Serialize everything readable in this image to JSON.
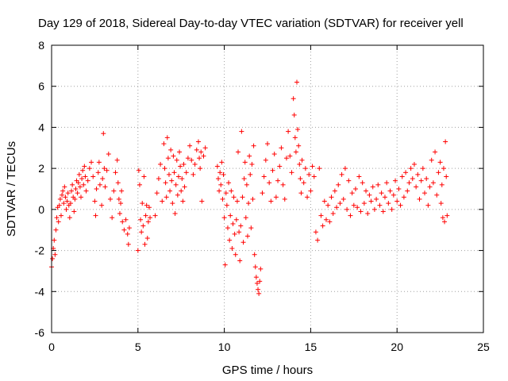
{
  "chart_data": {
    "type": "scatter",
    "title": "Day 129 of 2018, Sidereal Day-to-day VTEC variation (SDTVAR) for receiver yell",
    "xlabel": "GPS time / hours",
    "ylabel": "SDTVAR / TECUs",
    "xlim": [
      0,
      25
    ],
    "ylim": [
      -6,
      8
    ],
    "xticks": [
      "0",
      "5",
      "10",
      "15",
      "20",
      "25"
    ],
    "yticks": [
      "-6",
      "-4",
      "-2",
      "0",
      "2",
      "4",
      "6",
      "8"
    ],
    "grid": true,
    "marker": "+",
    "color": "#ff0000",
    "series": [
      {
        "name": "SDTVAR",
        "points": [
          [
            0.0,
            -2.8
          ],
          [
            0.05,
            -2.4
          ],
          [
            0.1,
            -1.9
          ],
          [
            0.15,
            -1.5
          ],
          [
            0.2,
            -2.2
          ],
          [
            0.25,
            -1.0
          ],
          [
            0.3,
            -0.4
          ],
          [
            0.35,
            0.1
          ],
          [
            0.4,
            -0.6
          ],
          [
            0.45,
            0.2
          ],
          [
            0.5,
            0.5
          ],
          [
            0.55,
            -0.3
          ],
          [
            0.6,
            0.7
          ],
          [
            0.65,
            0.9
          ],
          [
            0.7,
            0.3
          ],
          [
            0.75,
            1.1
          ],
          [
            0.8,
            0.6
          ],
          [
            0.85,
            0.0
          ],
          [
            0.9,
            0.4
          ],
          [
            0.95,
            0.8
          ],
          [
            1.0,
            0.2
          ],
          [
            1.05,
            -0.4
          ],
          [
            1.1,
            0.3
          ],
          [
            1.15,
            0.9
          ],
          [
            1.2,
            1.2
          ],
          [
            1.25,
            0.6
          ],
          [
            1.3,
            -0.1
          ],
          [
            1.35,
            0.5
          ],
          [
            1.4,
            1.0
          ],
          [
            1.45,
            1.4
          ],
          [
            1.5,
            0.8
          ],
          [
            1.55,
            1.3
          ],
          [
            1.6,
            1.7
          ],
          [
            1.65,
            1.1
          ],
          [
            1.7,
            0.6
          ],
          [
            1.75,
            1.5
          ],
          [
            1.8,
            1.9
          ],
          [
            1.85,
            1.2
          ],
          [
            1.9,
            2.1
          ],
          [
            1.95,
            1.6
          ],
          [
            2.0,
            0.9
          ],
          [
            2.1,
            1.4
          ],
          [
            2.2,
            2.0
          ],
          [
            2.3,
            2.3
          ],
          [
            2.4,
            1.6
          ],
          [
            2.5,
            0.4
          ],
          [
            2.55,
            -0.3
          ],
          [
            2.6,
            1.0
          ],
          [
            2.7,
            1.8
          ],
          [
            2.75,
            2.3
          ],
          [
            2.8,
            1.2
          ],
          [
            2.9,
            0.2
          ],
          [
            2.95,
            1.5
          ],
          [
            3.0,
            3.7
          ],
          [
            3.05,
            2.0
          ],
          [
            3.1,
            1.1
          ],
          [
            3.2,
            1.9
          ],
          [
            3.3,
            2.7
          ],
          [
            3.4,
            0.5
          ],
          [
            3.5,
            -0.4
          ],
          [
            3.6,
            0.9
          ],
          [
            3.7,
            1.8
          ],
          [
            3.8,
            2.4
          ],
          [
            3.85,
            1.3
          ],
          [
            3.9,
            0.5
          ],
          [
            3.95,
            -0.2
          ],
          [
            4.0,
            0.3
          ],
          [
            4.05,
            0.9
          ],
          [
            4.1,
            -0.6
          ],
          [
            4.2,
            -1.0
          ],
          [
            4.3,
            -0.5
          ],
          [
            4.4,
            -1.2
          ],
          [
            4.45,
            -1.7
          ],
          [
            4.5,
            -0.9
          ],
          [
            5.0,
            -2.0
          ],
          [
            5.05,
            1.9
          ],
          [
            5.1,
            1.2
          ],
          [
            5.15,
            -0.5
          ],
          [
            5.2,
            -1.1
          ],
          [
            5.25,
            0.3
          ],
          [
            5.3,
            -0.8
          ],
          [
            5.35,
            1.6
          ],
          [
            5.4,
            -1.7
          ],
          [
            5.45,
            -0.3
          ],
          [
            5.5,
            0.2
          ],
          [
            5.55,
            -1.4
          ],
          [
            5.6,
            -0.6
          ],
          [
            5.65,
            0.1
          ],
          [
            5.7,
            -0.4
          ],
          [
            6.0,
            -0.3
          ],
          [
            6.1,
            0.8
          ],
          [
            6.2,
            1.5
          ],
          [
            6.3,
            2.2
          ],
          [
            6.4,
            0.4
          ],
          [
            6.5,
            3.2
          ],
          [
            6.55,
            2.0
          ],
          [
            6.6,
            1.3
          ],
          [
            6.65,
            0.6
          ],
          [
            6.7,
            3.5
          ],
          [
            6.75,
            2.5
          ],
          [
            6.8,
            1.7
          ],
          [
            6.85,
            0.9
          ],
          [
            6.9,
            2.9
          ],
          [
            6.95,
            1.4
          ],
          [
            7.0,
            0.3
          ],
          [
            7.05,
            2.6
          ],
          [
            7.1,
            1.8
          ],
          [
            7.15,
            -0.2
          ],
          [
            7.2,
            1.2
          ],
          [
            7.25,
            2.4
          ],
          [
            7.3,
            0.7
          ],
          [
            7.35,
            1.6
          ],
          [
            7.4,
            2.8
          ],
          [
            7.45,
            2.1
          ],
          [
            7.5,
            0.9
          ],
          [
            7.55,
            1.5
          ],
          [
            7.6,
            0.4
          ],
          [
            7.65,
            2.2
          ],
          [
            7.7,
            1.1
          ],
          [
            7.8,
            1.8
          ],
          [
            7.9,
            2.5
          ],
          [
            8.0,
            3.1
          ],
          [
            8.1,
            2.4
          ],
          [
            8.2,
            1.7
          ],
          [
            8.3,
            2.2
          ],
          [
            8.4,
            2.9
          ],
          [
            8.5,
            3.3
          ],
          [
            8.55,
            2.5
          ],
          [
            8.6,
            2.0
          ],
          [
            8.65,
            2.8
          ],
          [
            8.7,
            0.4
          ],
          [
            8.8,
            2.6
          ],
          [
            8.9,
            3.0
          ],
          [
            9.6,
            2.1
          ],
          [
            9.65,
            1.5
          ],
          [
            9.7,
            0.9
          ],
          [
            9.75,
            1.8
          ],
          [
            9.8,
            1.2
          ],
          [
            9.85,
            2.3
          ],
          [
            9.9,
            0.5
          ],
          [
            9.95,
            1.7
          ],
          [
            10.0,
            -0.4
          ],
          [
            10.05,
            -2.7
          ],
          [
            10.1,
            0.8
          ],
          [
            10.15,
            0.2
          ],
          [
            10.2,
            -0.9
          ],
          [
            10.25,
            1.3
          ],
          [
            10.3,
            -1.5
          ],
          [
            10.35,
            -0.3
          ],
          [
            10.4,
            0.9
          ],
          [
            10.45,
            -1.9
          ],
          [
            10.5,
            -0.7
          ],
          [
            10.55,
            0.6
          ],
          [
            10.6,
            -1.2
          ],
          [
            10.65,
            -2.2
          ],
          [
            10.7,
            -0.5
          ],
          [
            10.75,
            0.4
          ],
          [
            10.8,
            2.8
          ],
          [
            10.85,
            -1.1
          ],
          [
            10.9,
            -2.5
          ],
          [
            10.95,
            -0.8
          ],
          [
            11.0,
            3.8
          ],
          [
            11.05,
            0.6
          ],
          [
            11.1,
            -1.6
          ],
          [
            11.15,
            1.5
          ],
          [
            11.2,
            2.3
          ],
          [
            11.25,
            -0.4
          ],
          [
            11.3,
            1.2
          ],
          [
            11.35,
            -1.3
          ],
          [
            11.4,
            0.3
          ],
          [
            11.45,
            2.6
          ],
          [
            11.5,
            1.7
          ],
          [
            11.55,
            -0.9
          ],
          [
            11.6,
            2.2
          ],
          [
            11.65,
            0.5
          ],
          [
            11.7,
            3.1
          ],
          [
            11.75,
            -2.2
          ],
          [
            11.8,
            -2.8
          ],
          [
            11.85,
            -3.3
          ],
          [
            11.9,
            -3.6
          ],
          [
            11.95,
            -3.9
          ],
          [
            12.0,
            -4.1
          ],
          [
            12.05,
            -3.5
          ],
          [
            12.1,
            -2.9
          ],
          [
            12.2,
            0.8
          ],
          [
            12.3,
            1.6
          ],
          [
            12.4,
            2.4
          ],
          [
            12.5,
            3.2
          ],
          [
            12.6,
            1.3
          ],
          [
            12.7,
            0.4
          ],
          [
            12.8,
            1.9
          ],
          [
            12.9,
            2.7
          ],
          [
            13.0,
            0.6
          ],
          [
            13.1,
            1.4
          ],
          [
            13.2,
            2.1
          ],
          [
            13.3,
            3.0
          ],
          [
            13.4,
            1.2
          ],
          [
            13.5,
            0.5
          ],
          [
            13.6,
            2.5
          ],
          [
            13.7,
            3.8
          ],
          [
            13.8,
            2.6
          ],
          [
            13.9,
            1.8
          ],
          [
            14.0,
            5.4
          ],
          [
            14.05,
            4.6
          ],
          [
            14.1,
            3.5
          ],
          [
            14.15,
            2.8
          ],
          [
            14.2,
            6.2
          ],
          [
            14.25,
            3.9
          ],
          [
            14.3,
            3.1
          ],
          [
            14.35,
            2.2
          ],
          [
            14.4,
            1.5
          ],
          [
            14.45,
            0.8
          ],
          [
            14.5,
            2.4
          ],
          [
            14.6,
            1.3
          ],
          [
            14.7,
            2.0
          ],
          [
            14.8,
            0.6
          ],
          [
            14.9,
            1.7
          ],
          [
            15.0,
            0.9
          ],
          [
            15.1,
            2.1
          ],
          [
            15.2,
            1.6
          ],
          [
            15.3,
            -1.1
          ],
          [
            15.4,
            -1.5
          ],
          [
            15.5,
            2.0
          ],
          [
            15.6,
            -0.3
          ],
          [
            15.7,
            -0.8
          ],
          [
            15.8,
            0.4
          ],
          [
            15.9,
            -0.5
          ],
          [
            16.0,
            0.2
          ],
          [
            16.1,
            -0.6
          ],
          [
            16.2,
            0.6
          ],
          [
            16.3,
            -0.2
          ],
          [
            16.4,
            0.9
          ],
          [
            16.5,
            0.1
          ],
          [
            16.6,
            1.2
          ],
          [
            16.7,
            0.3
          ],
          [
            16.8,
            1.7
          ],
          [
            16.9,
            0.5
          ],
          [
            17.0,
            2.0
          ],
          [
            17.1,
            0.0
          ],
          [
            17.2,
            1.4
          ],
          [
            17.3,
            -0.3
          ],
          [
            17.4,
            0.8
          ],
          [
            17.5,
            0.2
          ],
          [
            17.6,
            1.0
          ],
          [
            17.7,
            0.1
          ],
          [
            17.8,
            1.6
          ],
          [
            17.9,
            -0.1
          ],
          [
            18.0,
            1.3
          ],
          [
            18.1,
            0.3
          ],
          [
            18.2,
            0.9
          ],
          [
            18.3,
            -0.2
          ],
          [
            18.4,
            0.7
          ],
          [
            18.5,
            0.4
          ],
          [
            18.6,
            1.1
          ],
          [
            18.7,
            0.0
          ],
          [
            18.8,
            0.5
          ],
          [
            18.9,
            1.2
          ],
          [
            19.0,
            0.2
          ],
          [
            19.1,
            0.8
          ],
          [
            19.2,
            -0.1
          ],
          [
            19.3,
            0.6
          ],
          [
            19.4,
            1.3
          ],
          [
            19.5,
            0.3
          ],
          [
            19.6,
            0.9
          ],
          [
            19.7,
            0.0
          ],
          [
            19.8,
            0.7
          ],
          [
            19.9,
            1.4
          ],
          [
            20.0,
            0.4
          ],
          [
            20.1,
            1.0
          ],
          [
            20.2,
            0.2
          ],
          [
            20.3,
            1.6
          ],
          [
            20.4,
            0.6
          ],
          [
            20.5,
            1.8
          ],
          [
            20.6,
            0.9
          ],
          [
            20.7,
            1.3
          ],
          [
            20.8,
            2.0
          ],
          [
            20.9,
            1.5
          ],
          [
            21.0,
            2.2
          ],
          [
            21.1,
            1.1
          ],
          [
            21.2,
            1.7
          ],
          [
            21.3,
            0.5
          ],
          [
            21.4,
            1.4
          ],
          [
            21.5,
            2.0
          ],
          [
            21.6,
            0.8
          ],
          [
            21.7,
            1.5
          ],
          [
            21.8,
            0.2
          ],
          [
            21.9,
            1.1
          ],
          [
            22.0,
            2.4
          ],
          [
            22.1,
            1.3
          ],
          [
            22.2,
            2.8
          ],
          [
            22.3,
            0.7
          ],
          [
            22.4,
            1.8
          ],
          [
            22.5,
            2.3
          ],
          [
            22.55,
            0.3
          ],
          [
            22.6,
            1.2
          ],
          [
            22.65,
            -0.4
          ],
          [
            22.7,
            2.0
          ],
          [
            22.75,
            -0.6
          ],
          [
            22.8,
            3.3
          ],
          [
            22.85,
            1.6
          ],
          [
            22.9,
            -0.3
          ]
        ]
      }
    ]
  }
}
